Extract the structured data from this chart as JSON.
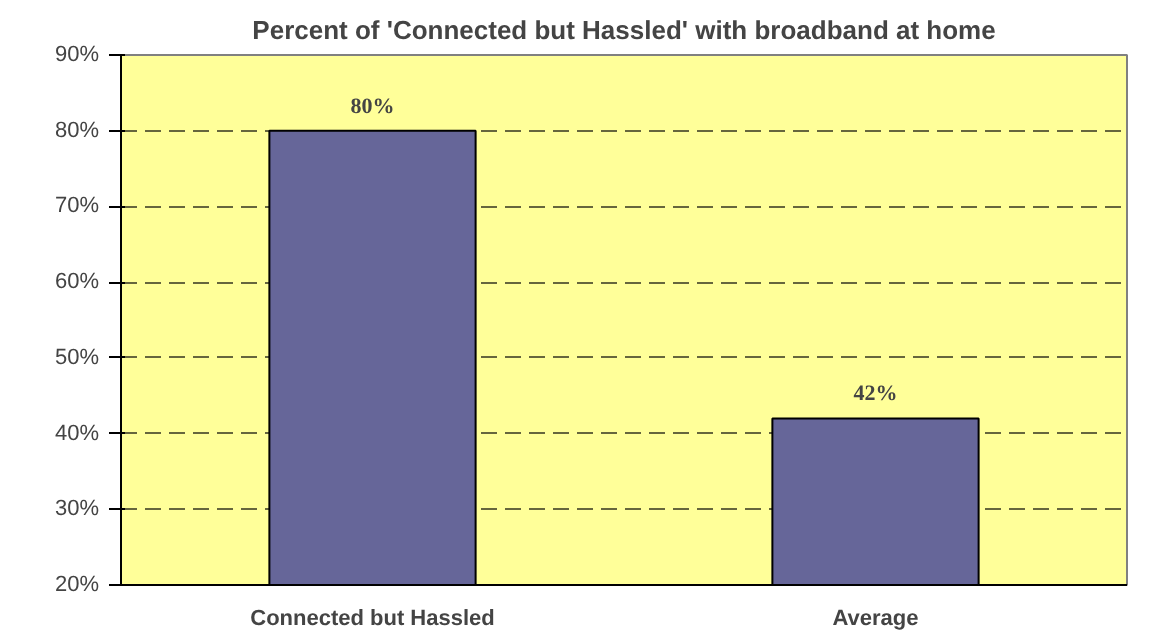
{
  "chart_data": {
    "type": "bar",
    "title": "Percent of 'Connected but Hassled' with broadband at home",
    "categories": [
      "Connected but Hassled",
      "Average"
    ],
    "values": [
      80,
      42
    ],
    "color": "#666699",
    "value_labels": [
      "80%",
      "42%"
    ],
    "ylim": [
      20,
      90
    ],
    "yticks": [
      {
        "value": 20,
        "label": "20%"
      },
      {
        "value": 30,
        "label": "30%"
      },
      {
        "value": 40,
        "label": "40%"
      },
      {
        "value": 50,
        "label": "50%"
      },
      {
        "value": 60,
        "label": "60%"
      },
      {
        "value": 70,
        "label": "70%"
      },
      {
        "value": 80,
        "label": "80%"
      },
      {
        "value": 90,
        "label": "90%"
      }
    ],
    "grid": "y"
  }
}
